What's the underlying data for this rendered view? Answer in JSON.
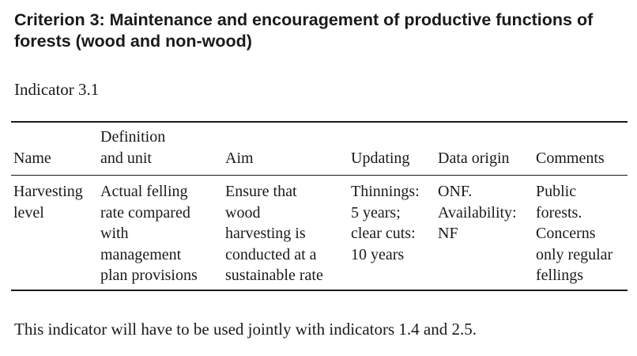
{
  "criterion_title": "Criterion 3: Maintenance and encouragement of productive functions of forests (wood and non-wood)",
  "indicator_label": "Indicator 3.1",
  "table": {
    "headers": {
      "name": "Name",
      "definition": "Definition\nand unit",
      "aim": "Aim",
      "updating": "Updating",
      "data_origin": "Data origin",
      "comments": "Comments"
    },
    "row": {
      "name": "Harvesting\nlevel",
      "definition": "Actual felling\nrate compared\nwith\nmanagement\nplan provisions",
      "aim": "Ensure that\nwood\nharvesting is\nconducted at a\nsustainable rate",
      "updating": "Thinnings:\n5 years;\nclear cuts:\n10 years",
      "data_origin": "ONF.\nAvailability:\nNF",
      "comments": "Public\nforests.\nConcerns\nonly regular\nfellings"
    }
  },
  "footnote": "This indicator will have to be used jointly with indicators 1.4 and 2.5."
}
